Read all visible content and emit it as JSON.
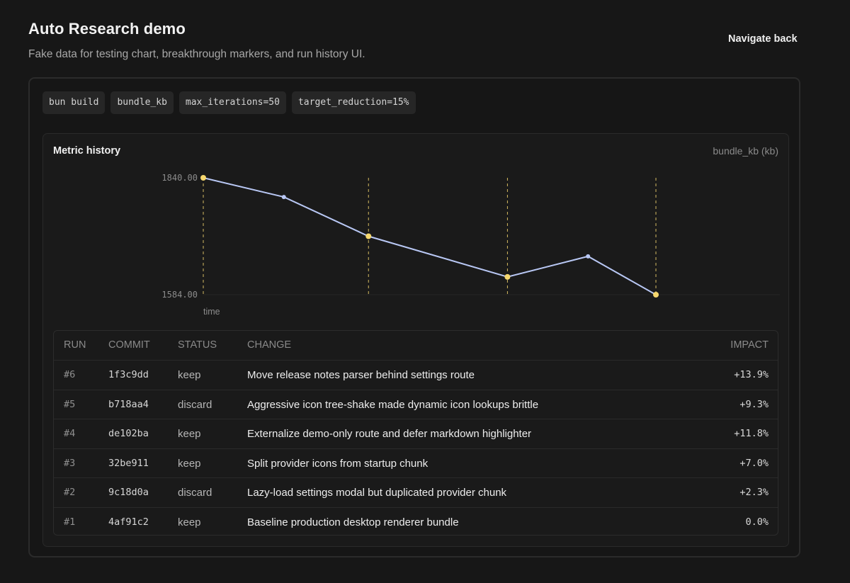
{
  "header": {
    "title": "Auto Research demo",
    "subtitle": "Fake data for testing chart, breakthrough markers, and run history UI.",
    "nav_back": "Navigate back"
  },
  "chips": [
    "bun build",
    "bundle_kb",
    "max_iterations=50",
    "target_reduction=15%"
  ],
  "metric": {
    "title": "Metric history",
    "unit": "bundle_kb (kb)"
  },
  "chart_data": {
    "type": "line",
    "xlabel": "time",
    "ylim": [
      1584.0,
      1840.0
    ],
    "y_tick_labels": [
      "1840.00",
      "1584.00"
    ],
    "series": [
      {
        "values": [
          1840.0,
          1798.0,
          1712.0,
          1623.0,
          1668.0,
          1584.0
        ],
        "breakthrough": [
          true,
          false,
          true,
          true,
          false,
          true
        ]
      }
    ],
    "line_color": "#b9c8f5",
    "breakthrough_color": "#f5d76e",
    "point_color": "#b9c8f5"
  },
  "table": {
    "headers": {
      "run": "RUN",
      "commit": "COMMIT",
      "status": "STATUS",
      "change": "CHANGE",
      "impact": "IMPACT"
    },
    "rows": [
      {
        "run": "#6",
        "commit": "1f3c9dd",
        "status": "keep",
        "change": "Move release notes parser behind settings route",
        "impact": "+13.9%"
      },
      {
        "run": "#5",
        "commit": "b718aa4",
        "status": "discard",
        "change": "Aggressive icon tree-shake made dynamic icon lookups brittle",
        "impact": "+9.3%"
      },
      {
        "run": "#4",
        "commit": "de102ba",
        "status": "keep",
        "change": "Externalize demo-only route and defer markdown highlighter",
        "impact": "+11.8%"
      },
      {
        "run": "#3",
        "commit": "32be911",
        "status": "keep",
        "change": "Split provider icons from startup chunk",
        "impact": "+7.0%"
      },
      {
        "run": "#2",
        "commit": "9c18d0a",
        "status": "discard",
        "change": "Lazy-load settings modal but duplicated provider chunk",
        "impact": "+2.3%"
      },
      {
        "run": "#1",
        "commit": "4af91c2",
        "status": "keep",
        "change": "Baseline production desktop renderer bundle",
        "impact": "0.0%"
      }
    ]
  }
}
